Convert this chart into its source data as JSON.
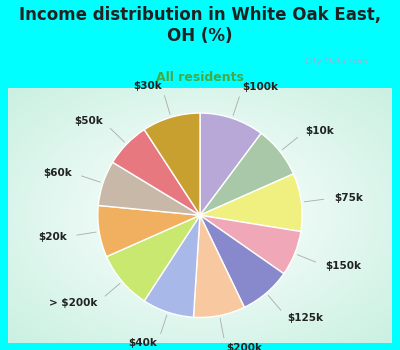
{
  "title": "Income distribution in White Oak East,\nOH (%)",
  "subtitle": "All residents",
  "bg_cyan": "#00FFFF",
  "chart_bg_color": "#d8f0e8",
  "labels": [
    "$100k",
    "$10k",
    "$75k",
    "$150k",
    "$125k",
    "$200k",
    "$40k",
    "> $200k",
    "$20k",
    "$60k",
    "$50k",
    "$30k"
  ],
  "values": [
    10,
    8,
    9,
    7,
    8,
    8,
    8,
    9,
    8,
    7,
    7,
    9
  ],
  "colors": [
    "#b8a8d8",
    "#a8c8a8",
    "#f0f080",
    "#f0a8b8",
    "#8888cc",
    "#f8c8a0",
    "#a8b8e8",
    "#c8e870",
    "#f0b060",
    "#c8b8a8",
    "#e87880",
    "#c8a030"
  ],
  "label_fontsize": 7.5,
  "title_fontsize": 12,
  "subtitle_fontsize": 9,
  "title_color": "#222222",
  "subtitle_color": "#44aa44",
  "line_color": "#aaaaaa",
  "label_color": "#222222",
  "watermark": "City-Data.com",
  "watermark_color": "#aaaacc",
  "wedge_edge_color": "#ffffff",
  "wedge_linewidth": 1.0
}
